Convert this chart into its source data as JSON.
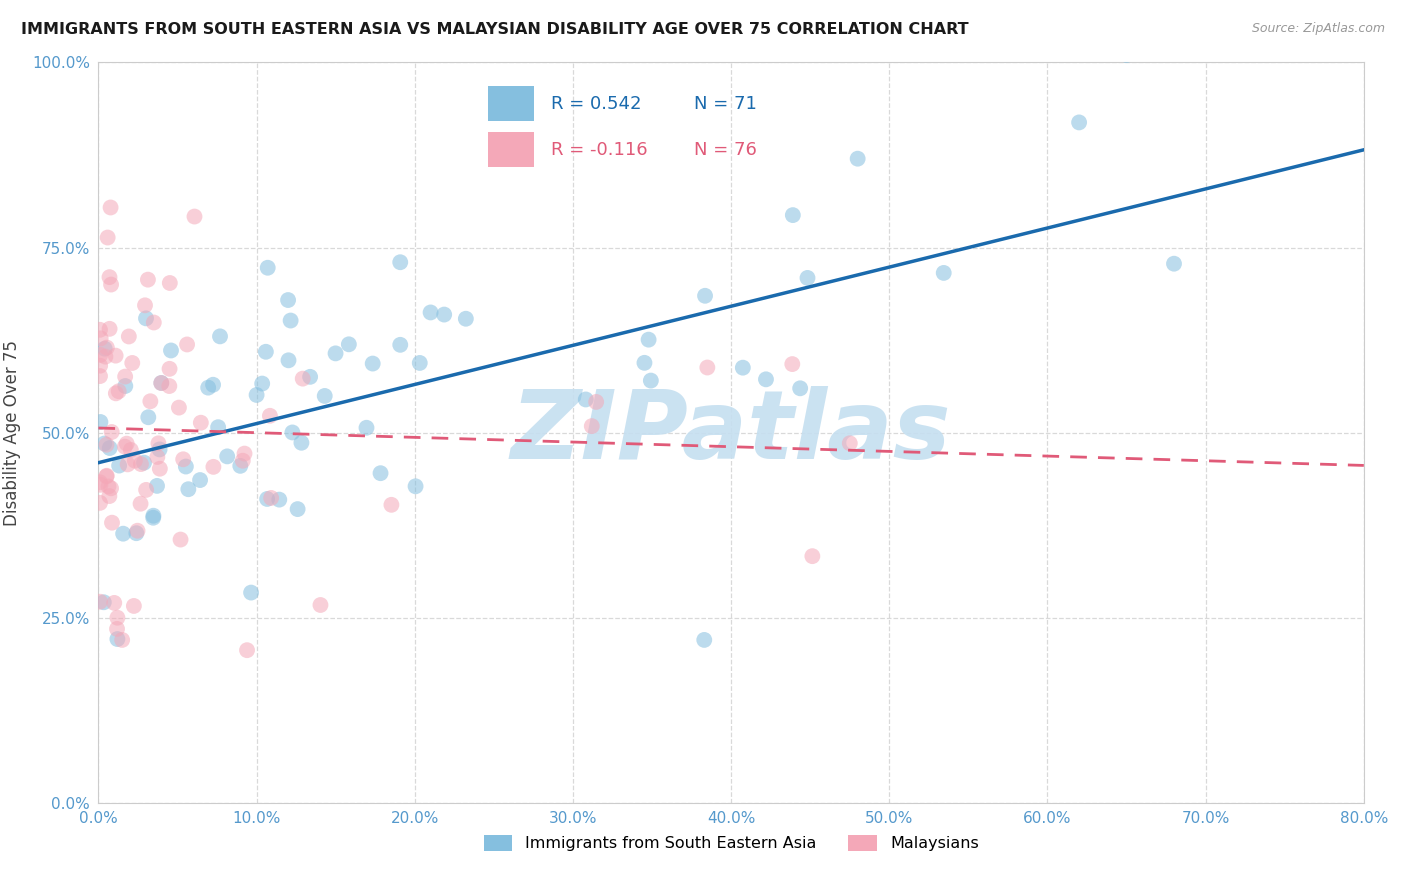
{
  "title": "IMMIGRANTS FROM SOUTH EASTERN ASIA VS MALAYSIAN DISABILITY AGE OVER 75 CORRELATION CHART",
  "source": "Source: ZipAtlas.com",
  "ylabel": "Disability Age Over 75",
  "legend_label_blue": "Immigrants from South Eastern Asia",
  "legend_label_pink": "Malaysians",
  "R_blue": 0.542,
  "N_blue": 71,
  "R_pink": -0.116,
  "N_pink": 76,
  "blue_color": "#85bfdf",
  "pink_color": "#f4a8b8",
  "blue_line_color": "#1a6aad",
  "pink_line_color": "#e05a78",
  "watermark": "ZIPatlas",
  "watermark_color": "#c5dff0",
  "xlim": [
    0.0,
    0.8
  ],
  "ylim": [
    0.0,
    1.0
  ],
  "xticks": [
    0.0,
    0.1,
    0.2,
    0.3,
    0.4,
    0.5,
    0.6,
    0.7,
    0.8
  ],
  "yticks": [
    0.0,
    0.25,
    0.5,
    0.75,
    1.0
  ],
  "tick_color": "#5599cc",
  "title_fontsize": 11.5,
  "source_fontsize": 9,
  "axis_label_fontsize": 12,
  "tick_fontsize": 11
}
